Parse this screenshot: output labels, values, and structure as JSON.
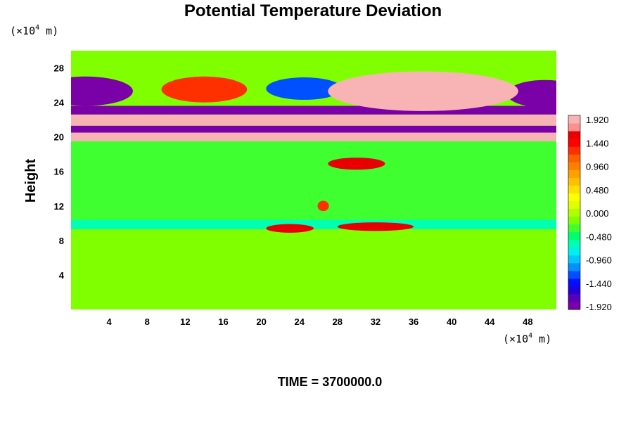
{
  "chart_data": {
    "type": "heatmap",
    "title": "Potential Temperature Deviation",
    "ylabel": "Height",
    "xlabel": "",
    "x_unit": {
      "prefix": "(×10",
      "exp": "4",
      "suffix": " m)"
    },
    "y_unit": {
      "prefix": "(×10",
      "exp": "4",
      "suffix": " m)"
    },
    "xlim": [
      0,
      51
    ],
    "ylim": [
      0,
      30
    ],
    "x_ticks": [
      4,
      8,
      12,
      16,
      20,
      24,
      28,
      32,
      36,
      40,
      44,
      48
    ],
    "y_ticks": [
      4,
      8,
      12,
      16,
      20,
      24,
      28
    ],
    "colorbar": {
      "min": -1.92,
      "max": 1.92,
      "tick_labels": [
        "1.920",
        "1.440",
        "0.960",
        "0.480",
        "0.000",
        "-0.480",
        "-0.960",
        "-1.440",
        "-1.920"
      ],
      "colors": [
        "#7a00a8",
        "#5a00b8",
        "#2400d8",
        "#0010ff",
        "#0050ff",
        "#0090ff",
        "#00c8ff",
        "#00f0f0",
        "#00ffb0",
        "#00ff70",
        "#40ff30",
        "#80ff00",
        "#b0ff00",
        "#e0ff00",
        "#ffff00",
        "#ffe000",
        "#ffc000",
        "#ffa000",
        "#ff8000",
        "#ff6000",
        "#ff3000",
        "#ff0000",
        "#e80000",
        "#ff9090",
        "#f8b4b4"
      ]
    },
    "features": [
      {
        "type": "band",
        "ylo": 0,
        "yhi": 9.3,
        "value": -0.1
      },
      {
        "type": "band",
        "ylo": 9.3,
        "yhi": 10.4,
        "value": -0.55
      },
      {
        "type": "band",
        "ylo": 10.4,
        "yhi": 19.5,
        "value": -0.25
      },
      {
        "type": "band",
        "ylo": 19.5,
        "yhi": 20.5,
        "value": 1.92
      },
      {
        "type": "band",
        "ylo": 20.5,
        "yhi": 21.3,
        "value": -1.92
      },
      {
        "type": "band",
        "ylo": 21.3,
        "yhi": 22.6,
        "value": 1.92
      },
      {
        "type": "band",
        "ylo": 22.6,
        "yhi": 23.6,
        "value": -1.92
      },
      {
        "type": "band",
        "ylo": 23.6,
        "yhi": 30,
        "value": -0.1
      },
      {
        "type": "blob",
        "x": 1.5,
        "y": 25.3,
        "rx": 5,
        "ry": 1.7,
        "value": -1.92
      },
      {
        "type": "blob",
        "x": 49.8,
        "y": 25.0,
        "rx": 4,
        "ry": 1.6,
        "value": -1.92
      },
      {
        "type": "blob",
        "x": 14,
        "y": 25.5,
        "rx": 4.5,
        "ry": 1.5,
        "value": 1.3
      },
      {
        "type": "blob",
        "x": 24.5,
        "y": 25.6,
        "rx": 4,
        "ry": 1.3,
        "value": -1.2
      },
      {
        "type": "blob",
        "x": 37,
        "y": 25.3,
        "rx": 10,
        "ry": 2.3,
        "value": 1.92
      },
      {
        "type": "blob",
        "x": 30,
        "y": 16.9,
        "rx": 3,
        "ry": 0.7,
        "value": 1.5
      },
      {
        "type": "blob",
        "x": 23,
        "y": 9.4,
        "rx": 2.5,
        "ry": 0.5,
        "value": 1.5
      },
      {
        "type": "blob",
        "x": 32,
        "y": 9.6,
        "rx": 4,
        "ry": 0.5,
        "value": 1.6
      },
      {
        "type": "blob",
        "x": 26.5,
        "y": 12,
        "rx": 0.6,
        "ry": 0.6,
        "value": 1.2
      }
    ]
  },
  "footer": {
    "time_label": "TIME = 3700000.0"
  }
}
